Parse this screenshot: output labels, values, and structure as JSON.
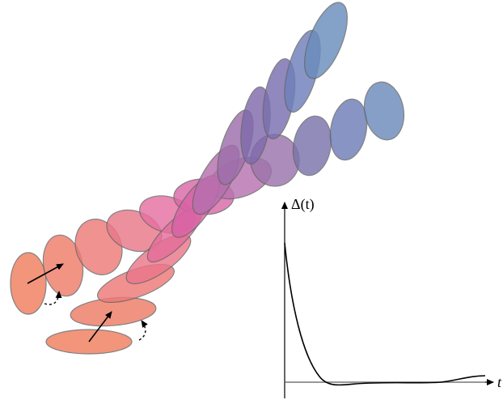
{
  "plot": {
    "y_label": "Δ(t)",
    "x_label": "t"
  }
}
